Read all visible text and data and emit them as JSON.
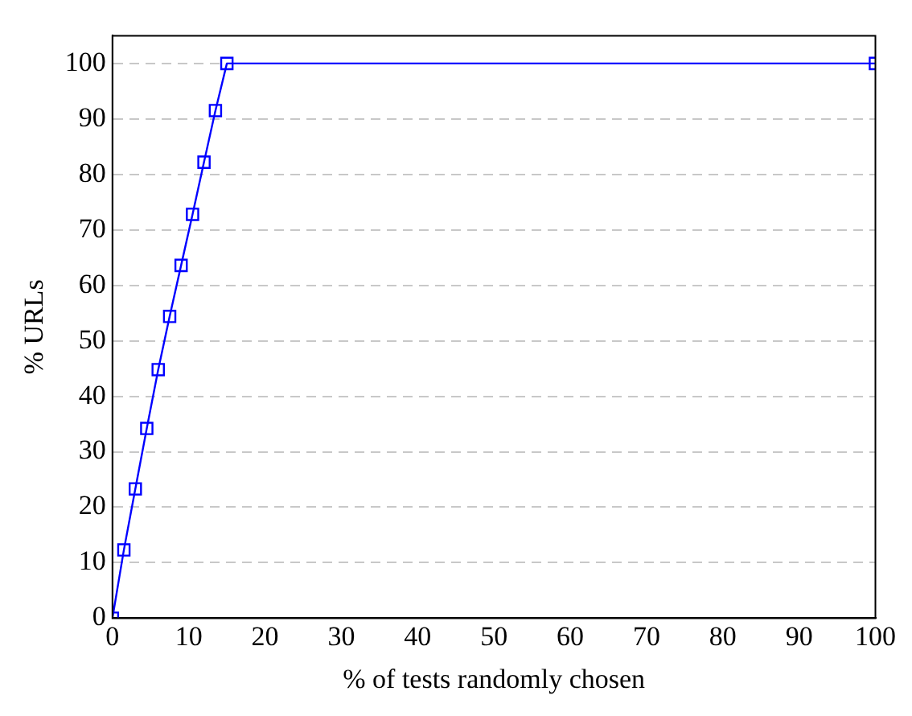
{
  "chart_data": {
    "type": "line",
    "xlabel": "% of tests randomly chosen",
    "ylabel": "% URLs",
    "x": [
      0,
      1.5,
      3,
      4.5,
      6,
      7.5,
      9,
      10.5,
      12,
      13.5,
      15,
      100
    ],
    "series": [
      {
        "color": "#0000ff",
        "values": [
          0,
          12.3,
          23.3,
          34.2,
          44.8,
          54.4,
          63.6,
          72.8,
          82.2,
          91.5,
          100,
          100
        ]
      }
    ],
    "xlim": [
      0,
      100
    ],
    "xticks": [
      0,
      10,
      20,
      30,
      40,
      50,
      60,
      70,
      80,
      90,
      100
    ],
    "ylim": [
      0,
      105
    ],
    "yticks": [
      0,
      10,
      20,
      30,
      40,
      50,
      60,
      70,
      80,
      90,
      100
    ],
    "grid": "y",
    "marker": "square",
    "line_style": "solid",
    "legend": false
  }
}
